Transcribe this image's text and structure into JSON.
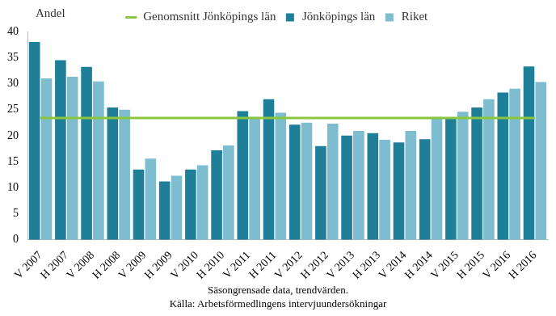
{
  "chart_data": {
    "type": "bar",
    "y_label": "Andel",
    "annotations": [
      "Säsongrensade data, trendvärden.",
      "Källa: Arbetsförmedlingens intervjuundersökningar"
    ],
    "categories": [
      "V 2007",
      "H 2007",
      "V 2008",
      "H 2008",
      "V 2009",
      "H 2009",
      "V 2010",
      "H 2010",
      "V 2011",
      "H 2011",
      "V 2012",
      "H 2012",
      "V 2013",
      "H 2013",
      "V 2014",
      "H 2014",
      "V 2015",
      "H 2015",
      "V 2016",
      "H 2016"
    ],
    "series": [
      {
        "name": "Jönköpings län",
        "color": "#1f7f99",
        "type": "bar",
        "values": [
          38,
          34.5,
          33.2,
          25.4,
          13.5,
          11.2,
          13.5,
          17.2,
          24.7,
          27,
          22.1,
          18,
          20,
          20.5,
          18.7,
          19.3,
          23.3,
          25.4,
          28.3,
          33.3
        ]
      },
      {
        "name": "Riket",
        "color": "#7dbdcf",
        "type": "bar",
        "values": [
          31,
          31.3,
          30.4,
          25,
          15.6,
          12.3,
          14.3,
          18.1,
          23.6,
          24.4,
          22.5,
          22.3,
          20.9,
          19.2,
          20.9,
          23.6,
          24.6,
          27,
          29,
          30.3
        ]
      },
      {
        "name": "Genomsnitt Jönköpings län",
        "color": "#8cc63f",
        "type": "line",
        "values": [
          23.4,
          23.4,
          23.4,
          23.4,
          23.4,
          23.4,
          23.4,
          23.4,
          23.4,
          23.4,
          23.4,
          23.4,
          23.4,
          23.4,
          23.4,
          23.4,
          23.4,
          23.4,
          23.4,
          23.4
        ]
      }
    ],
    "ylim": [
      0,
      40
    ],
    "yticks": [
      0,
      5,
      10,
      15,
      20,
      25,
      30,
      35,
      40
    ],
    "grid": false,
    "legend": "top"
  }
}
